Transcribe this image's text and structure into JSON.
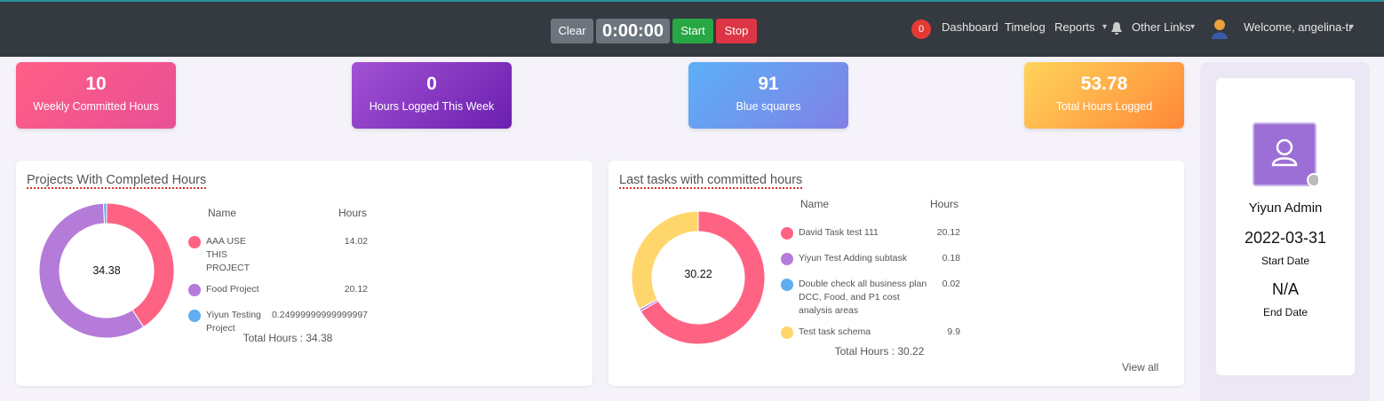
{
  "navbar": {
    "clear": "Clear",
    "timer": "0:00:00",
    "start": "Start",
    "stop": "Stop",
    "badge": "0",
    "links": [
      "Dashboard",
      "Timelog",
      "Reports",
      "Other Links"
    ],
    "welcome": "Welcome, angelina-tr"
  },
  "stats": [
    {
      "value": 10,
      "label": "Weekly Committed Hours"
    },
    {
      "value": 0,
      "label": "Hours Logged This Week"
    },
    {
      "value": 91,
      "label": "Blue squares"
    },
    {
      "value": 53.78,
      "label": "Total Hours Logged"
    }
  ],
  "projects": {
    "title": "Projects With Completed Hours",
    "headers": [
      "Name",
      "Hours"
    ],
    "center": 34.38,
    "rows": [
      {
        "name": "AAA USE THIS PROJECT",
        "hours": 14.02,
        "color": "#ff6384"
      },
      {
        "name": "Food Project",
        "hours": 20.12,
        "color": "#b57bd9"
      },
      {
        "name": "Yiyun Testing Project",
        "hours": 0.24999999999999997,
        "color": "#5eaef0"
      }
    ],
    "total": "Total Hours : 34.38"
  },
  "tasks": {
    "title": "Last tasks with committed hours",
    "headers": [
      "Name",
      "Hours"
    ],
    "center": 30.22,
    "rows": [
      {
        "name": "David Task test 111",
        "hours": 20.12,
        "color": "#ff6384"
      },
      {
        "name": "Yiyun Test Adding subtask",
        "hours": 0.18,
        "color": "#b57bd9"
      },
      {
        "name": "Double check all business plan DCC, Food, and P1 cost analysis areas",
        "hours": 0.02,
        "color": "#5eaef0"
      },
      {
        "name": "Test task schema",
        "hours": 9.9,
        "color": "#ffd66b"
      }
    ],
    "total": "Total Hours : 30.22",
    "view_all": "View all"
  },
  "profile": {
    "name": "Yiyun Admin",
    "start": "2022-03-31",
    "start_label": "Start Date",
    "end": "N/A",
    "end_label": "End Date"
  }
}
